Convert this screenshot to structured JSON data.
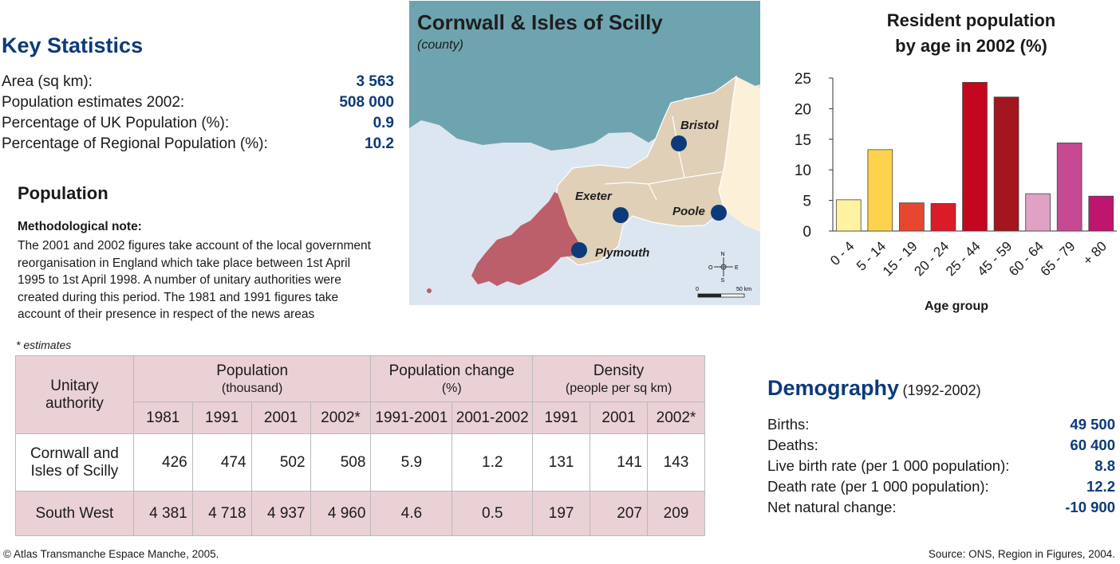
{
  "key_stats": {
    "title": "Key Statistics",
    "rows": [
      {
        "label": "Area (sq km):",
        "value": "3 563"
      },
      {
        "label": "Population estimates 2002:",
        "value": "508 000"
      },
      {
        "label": "Percentage of UK Population (%):",
        "value": "0.9"
      },
      {
        "label": "Percentage of Regional Population (%):",
        "value": "10.2"
      }
    ]
  },
  "population": {
    "title": "Population",
    "note_heading": "Methodological note:",
    "note_lines": [
      "The 2001 and 2002 figures take account of the local government",
      "reorganisation in England which take place between 1st April",
      "1995 to 1st April 1998. A number of unitary authorities were",
      "created during this period. The 1981 and 1991 figures take",
      "account of their presence in respect of the news areas"
    ],
    "estimates_note": "* estimates"
  },
  "map": {
    "title": "Cornwall & Isles of Scilly",
    "subtitle": "(county)",
    "cities": [
      "Bristol",
      "Exeter",
      "Poole",
      "Plymouth"
    ],
    "scale_start": "0",
    "scale_end": "50 km",
    "compass": {
      "n": "N",
      "s": "S",
      "e": "E",
      "w": "O"
    },
    "colors": {
      "sea": "#dbe6f1",
      "wales": "#6ea4af",
      "region": "#e0d0b8",
      "county": "#bc5f6a",
      "neighbour": "#fdf0d8",
      "city": "#0d3a7a"
    }
  },
  "chart_data": {
    "type": "bar",
    "title_lines": [
      "Resident population",
      "by age in 2002 (%)"
    ],
    "xlabel": "Age group",
    "ylabel": "",
    "categories": [
      "0 - 4",
      "5 - 14",
      "15 - 19",
      "20 - 24",
      "25 - 44",
      "45 - 59",
      "60 - 64",
      "65 - 79",
      "+ 80"
    ],
    "values": [
      5.1,
      13.3,
      4.6,
      4.5,
      24.3,
      21.9,
      6.1,
      14.4,
      5.7
    ],
    "colors": [
      "#fff2a0",
      "#fdd34d",
      "#e8472f",
      "#d91c28",
      "#c4061f",
      "#a3151f",
      "#dfa1c4",
      "#c54a92",
      "#c0156e"
    ],
    "ylim": [
      0,
      25
    ],
    "yticks": [
      0,
      5,
      10,
      15,
      20,
      25
    ],
    "legend": "none",
    "grid": false
  },
  "demography": {
    "title": "Demography",
    "period": "(1992-2002)",
    "rows": [
      {
        "label": "Births:",
        "value": "49 500"
      },
      {
        "label": "Deaths:",
        "value": "60 400"
      },
      {
        "label": "Live birth rate (per 1 000 population):",
        "value": "8.8"
      },
      {
        "label": "Death rate (per 1 000 population):",
        "value": "12.2"
      },
      {
        "label": "Net natural change:",
        "value": "-10 900"
      }
    ]
  },
  "table": {
    "corner_header": [
      "Unitary",
      "authority"
    ],
    "groups": [
      {
        "title": "Population",
        "sub": "(thousand)"
      },
      {
        "title": "Population change",
        "sub": "(%)"
      },
      {
        "title": "Density",
        "sub": "(people per sq km)"
      }
    ],
    "subheaders": [
      "1981",
      "1991",
      "2001",
      "2002*",
      "1991-2001",
      "2001-2002",
      "1991",
      "2001",
      "2002*"
    ],
    "rows": [
      {
        "name_lines": [
          "Cornwall and",
          "Isles of Scilly"
        ],
        "values": [
          "426",
          "474",
          "502",
          "508",
          "5.9",
          "1.2",
          "131",
          "141",
          "143"
        ]
      },
      {
        "name_lines": [
          "South West"
        ],
        "values": [
          "4 381",
          "4 718",
          "4 937",
          "4 960",
          "4.6",
          "0.5",
          "197",
          "207",
          "209"
        ]
      }
    ]
  },
  "footer": {
    "left": "© Atlas Transmanche Espace Manche, 2005.",
    "right": "Source: ONS, Region in Figures, 2004."
  }
}
